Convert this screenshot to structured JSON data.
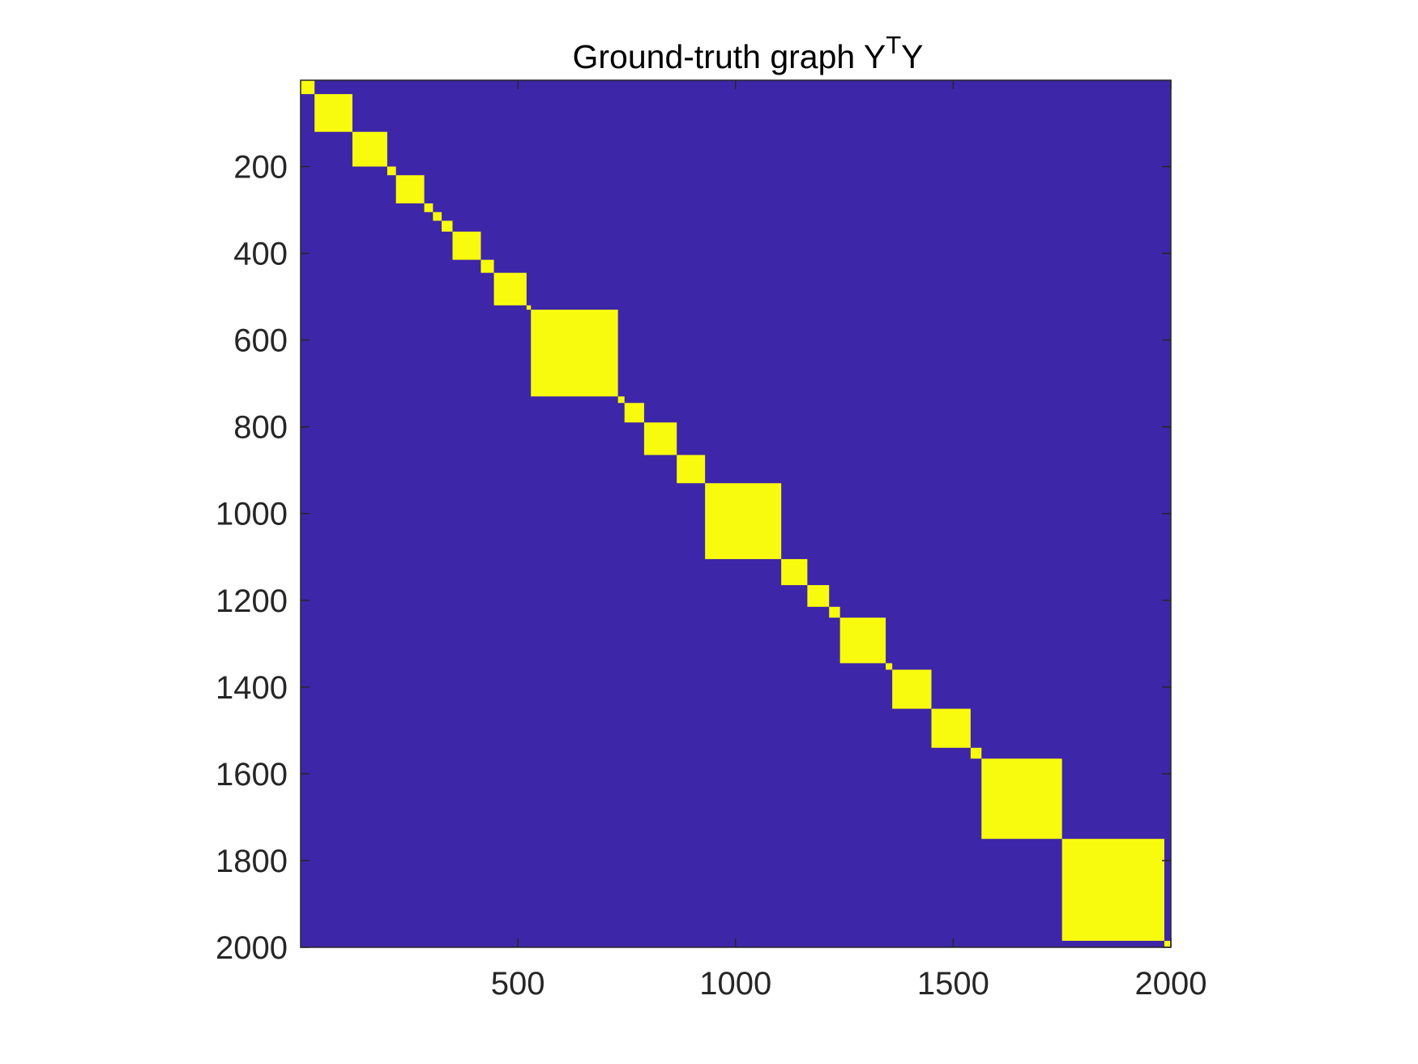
{
  "chart_data": {
    "type": "heatmap",
    "title": {
      "main": "Ground-truth graph Y",
      "superscript": "T",
      "suffix": "Y"
    },
    "xlabel": "",
    "ylabel": "",
    "xlim": [
      1,
      2000
    ],
    "ylim": [
      1,
      2000
    ],
    "y_direction": "reversed",
    "xticks": [
      500,
      1000,
      1500,
      2000
    ],
    "xtick_labels": [
      "500",
      "1000",
      "1500",
      "2000"
    ],
    "yticks": [
      200,
      400,
      600,
      800,
      1000,
      1200,
      1400,
      1600,
      1800,
      2000
    ],
    "ytick_labels": [
      "200",
      "400",
      "600",
      "800",
      "1000",
      "1200",
      "1400",
      "1600",
      "1800",
      "2000"
    ],
    "grid": false,
    "colors": {
      "background_value_0": "#3e26a8",
      "block_value_1": "#f9fb0e",
      "axis": "#262626"
    },
    "diagonal_blocks": [
      {
        "start": 1,
        "end": 33
      },
      {
        "start": 33,
        "end": 120
      },
      {
        "start": 120,
        "end": 200
      },
      {
        "start": 200,
        "end": 220
      },
      {
        "start": 220,
        "end": 285
      },
      {
        "start": 285,
        "end": 305
      },
      {
        "start": 305,
        "end": 325
      },
      {
        "start": 325,
        "end": 350
      },
      {
        "start": 350,
        "end": 415
      },
      {
        "start": 415,
        "end": 445
      },
      {
        "start": 445,
        "end": 520
      },
      {
        "start": 520,
        "end": 530
      },
      {
        "start": 530,
        "end": 730
      },
      {
        "start": 730,
        "end": 745
      },
      {
        "start": 745,
        "end": 790
      },
      {
        "start": 790,
        "end": 865
      },
      {
        "start": 865,
        "end": 930
      },
      {
        "start": 930,
        "end": 1105
      },
      {
        "start": 1105,
        "end": 1165
      },
      {
        "start": 1165,
        "end": 1215
      },
      {
        "start": 1215,
        "end": 1240
      },
      {
        "start": 1240,
        "end": 1345
      },
      {
        "start": 1345,
        "end": 1360
      },
      {
        "start": 1360,
        "end": 1450
      },
      {
        "start": 1450,
        "end": 1540
      },
      {
        "start": 1540,
        "end": 1565
      },
      {
        "start": 1565,
        "end": 1750
      },
      {
        "start": 1750,
        "end": 1985
      },
      {
        "start": 1985,
        "end": 2000
      }
    ]
  }
}
